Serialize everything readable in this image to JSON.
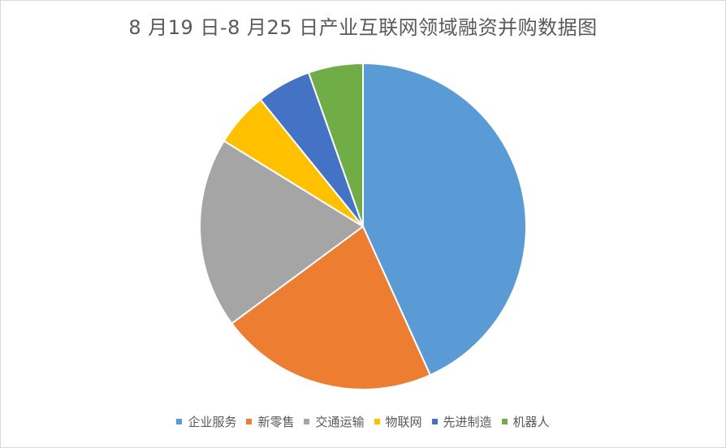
{
  "chart_data": {
    "type": "pie",
    "title": "8 月19 日-8 月25 日产业互联网领域融资并购数据图",
    "categories": [
      "企业服务",
      "新零售",
      "交通运输",
      "物联网",
      "先进制造",
      "机器人"
    ],
    "values": [
      8,
      4,
      3.5,
      1,
      1,
      1
    ],
    "colors": [
      "#5b9bd5",
      "#ed7d31",
      "#a5a5a5",
      "#ffc000",
      "#4472c4",
      "#70ad47"
    ],
    "legend_position": "bottom",
    "start_angle": "12 o'clock",
    "direction": "clockwise"
  }
}
